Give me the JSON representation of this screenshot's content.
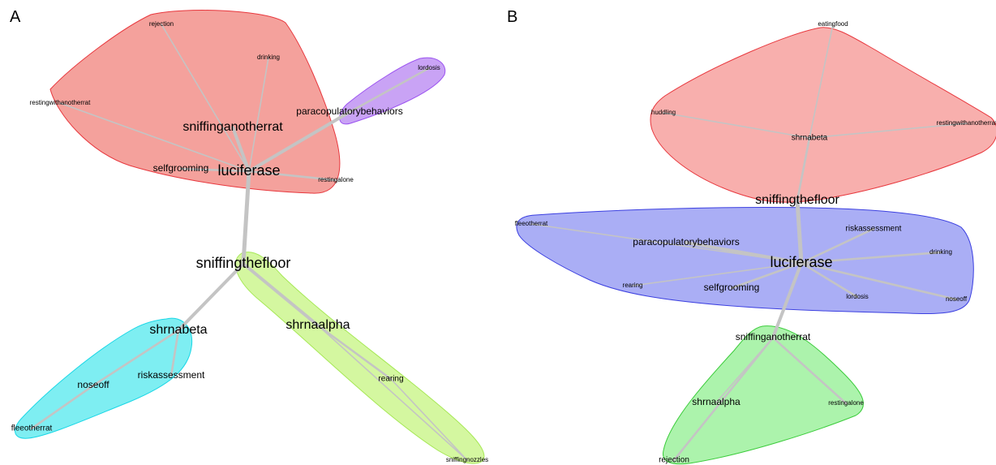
{
  "panels": [
    {
      "letter": "A",
      "clusters": [
        {
          "fill": "#f4a19c",
          "stroke": "#e8383e",
          "members": [
            "sniffinganotherrat",
            "luciferase",
            "selfgrooming",
            "restingalone",
            "drinking",
            "rejection",
            "restingwithanotherrat"
          ]
        },
        {
          "fill": "#c9a3f5",
          "stroke": "#9b52f0",
          "members": [
            "paracopulatorybehaviors",
            "lordosis"
          ]
        },
        {
          "fill": "#7eeef2",
          "stroke": "#19d7e6",
          "members": [
            "shrnabeta",
            "noseoff",
            "riskassessment",
            "fleeotherrat"
          ]
        },
        {
          "fill": "#d4f7a0",
          "stroke": "#a6e855",
          "members": [
            "sniffingthefloor",
            "shrnaalpha",
            "rearing",
            "sniffingnozzles"
          ]
        }
      ],
      "nodes": [
        {
          "id": "rejection",
          "label": "rejection",
          "size": "tiny"
        },
        {
          "id": "drinking",
          "label": "drinking",
          "size": "tiny"
        },
        {
          "id": "restingwithanotherrat",
          "label": "restingwithanotherrat",
          "size": "tiny"
        },
        {
          "id": "sniffinganotherrat",
          "label": "sniffinganotherrat",
          "size": "large"
        },
        {
          "id": "selfgrooming",
          "label": "selfgrooming",
          "size": "medium"
        },
        {
          "id": "luciferase",
          "label": "luciferase",
          "size": "xlarge"
        },
        {
          "id": "restingalone",
          "label": "restingalone",
          "size": "tiny"
        },
        {
          "id": "lordosis",
          "label": "lordosis",
          "size": "tiny"
        },
        {
          "id": "paracopulatorybehaviors",
          "label": "paracopulatorybehaviors",
          "size": "medium"
        },
        {
          "id": "sniffingthefloor",
          "label": "sniffingthefloor",
          "size": "xlarge"
        },
        {
          "id": "shrnabeta",
          "label": "shrnabeta",
          "size": "large"
        },
        {
          "id": "noseoff",
          "label": "noseoff",
          "size": "medium"
        },
        {
          "id": "riskassessment",
          "label": "riskassessment",
          "size": "medium"
        },
        {
          "id": "fleeotherrat",
          "label": "fleeotherrat",
          "size": "small"
        },
        {
          "id": "shrnaalpha",
          "label": "shrnaalpha",
          "size": "large"
        },
        {
          "id": "rearing",
          "label": "rearing",
          "size": "small"
        },
        {
          "id": "sniffingnozzles",
          "label": "sniffingnozzles",
          "size": "tiny"
        }
      ],
      "edges": [
        {
          "source": "luciferase",
          "target": "sniffinganotherrat",
          "weight": "heavy"
        },
        {
          "source": "luciferase",
          "target": "selfgrooming",
          "weight": "medium"
        },
        {
          "source": "luciferase",
          "target": "restingalone",
          "weight": "medium"
        },
        {
          "source": "luciferase",
          "target": "drinking",
          "weight": "light"
        },
        {
          "source": "luciferase",
          "target": "rejection",
          "weight": "light"
        },
        {
          "source": "luciferase",
          "target": "restingwithanotherrat",
          "weight": "light"
        },
        {
          "source": "luciferase",
          "target": "paracopulatorybehaviors",
          "weight": "heavy"
        },
        {
          "source": "paracopulatorybehaviors",
          "target": "lordosis",
          "weight": "medium"
        },
        {
          "source": "luciferase",
          "target": "sniffingthefloor",
          "weight": "xheavy"
        },
        {
          "source": "sniffingthefloor",
          "target": "shrnabeta",
          "weight": "heavy"
        },
        {
          "source": "sniffingthefloor",
          "target": "shrnaalpha",
          "weight": "heavy"
        },
        {
          "source": "shrnabeta",
          "target": "riskassessment",
          "weight": "medium"
        },
        {
          "source": "shrnabeta",
          "target": "noseoff",
          "weight": "medium"
        },
        {
          "source": "noseoff",
          "target": "fleeotherrat",
          "weight": "medium"
        },
        {
          "source": "shrnaalpha",
          "target": "rearing",
          "weight": "medium"
        },
        {
          "source": "rearing",
          "target": "sniffingnozzles",
          "weight": "light"
        },
        {
          "source": "shrnaalpha",
          "target": "sniffingnozzles",
          "weight": "light"
        }
      ]
    },
    {
      "letter": "B",
      "clusters": [
        {
          "fill": "#f8afad",
          "stroke": "#e8383e",
          "members": [
            "shrnabeta",
            "eatingfood",
            "huddling",
            "restingwithanotherrat"
          ]
        },
        {
          "fill": "#aaaef5",
          "stroke": "#3b3fe0",
          "members": [
            "luciferase",
            "fleeotherrat",
            "paracopulatorybehaviors",
            "riskassessment",
            "drinking",
            "rearing",
            "selfgrooming",
            "lordosis",
            "noseoff"
          ]
        },
        {
          "fill": "#acf3ac",
          "stroke": "#3bcc3b",
          "members": [
            "sniffinganotherrat",
            "shrnaalpha",
            "restingalone",
            "rejection"
          ]
        }
      ],
      "nodes": [
        {
          "id": "eatingfood",
          "label": "eatingfood",
          "size": "tiny"
        },
        {
          "id": "huddling",
          "label": "huddling",
          "size": "tiny"
        },
        {
          "id": "restingwithanotherrat",
          "label": "restingwithanotherrat",
          "size": "tiny"
        },
        {
          "id": "shrnabeta",
          "label": "shrnabeta",
          "size": "small"
        },
        {
          "id": "sniffingthefloor",
          "label": "sniffingthefloor",
          "size": "large"
        },
        {
          "id": "fleeotherrat",
          "label": "fleeotherrat",
          "size": "tiny"
        },
        {
          "id": "riskassessment",
          "label": "riskassessment",
          "size": "small"
        },
        {
          "id": "paracopulatorybehaviors",
          "label": "paracopulatorybehaviors",
          "size": "medium"
        },
        {
          "id": "drinking",
          "label": "drinking",
          "size": "tiny"
        },
        {
          "id": "luciferase",
          "label": "luciferase",
          "size": "xlarge"
        },
        {
          "id": "rearing",
          "label": "rearing",
          "size": "tiny"
        },
        {
          "id": "selfgrooming",
          "label": "selfgrooming",
          "size": "medium"
        },
        {
          "id": "lordosis",
          "label": "lordosis",
          "size": "tiny"
        },
        {
          "id": "noseoff",
          "label": "noseoff",
          "size": "tiny"
        },
        {
          "id": "sniffinganotherrat",
          "label": "sniffinganotherrat",
          "size": "medium"
        },
        {
          "id": "shrnaalpha",
          "label": "shrnaalpha",
          "size": "medium"
        },
        {
          "id": "restingalone",
          "label": "restingalone",
          "size": "tiny"
        },
        {
          "id": "rejection",
          "label": "rejection",
          "size": "small"
        }
      ],
      "edges": [
        {
          "source": "shrnabeta",
          "target": "eatingfood",
          "weight": "light"
        },
        {
          "source": "shrnabeta",
          "target": "huddling",
          "weight": "light"
        },
        {
          "source": "shrnabeta",
          "target": "restingwithanotherrat",
          "weight": "light"
        },
        {
          "source": "shrnabeta",
          "target": "sniffingthefloor",
          "weight": "medium"
        },
        {
          "source": "sniffingthefloor",
          "target": "luciferase",
          "weight": "xheavy"
        },
        {
          "source": "luciferase",
          "target": "paracopulatorybehaviors",
          "weight": "heavy"
        },
        {
          "source": "luciferase",
          "target": "fleeotherrat",
          "weight": "light"
        },
        {
          "source": "luciferase",
          "target": "riskassessment",
          "weight": "medium"
        },
        {
          "source": "luciferase",
          "target": "drinking",
          "weight": "medium"
        },
        {
          "source": "luciferase",
          "target": "rearing",
          "weight": "light"
        },
        {
          "source": "luciferase",
          "target": "selfgrooming",
          "weight": "medium"
        },
        {
          "source": "luciferase",
          "target": "lordosis",
          "weight": "medium"
        },
        {
          "source": "luciferase",
          "target": "noseoff",
          "weight": "medium"
        },
        {
          "source": "luciferase",
          "target": "sniffinganotherrat",
          "weight": "heavy"
        },
        {
          "source": "sniffinganotherrat",
          "target": "shrnaalpha",
          "weight": "light"
        },
        {
          "source": "sniffinganotherrat",
          "target": "restingalone",
          "weight": "medium"
        },
        {
          "source": "sniffinganotherrat",
          "target": "rejection",
          "weight": "medium"
        }
      ]
    }
  ]
}
